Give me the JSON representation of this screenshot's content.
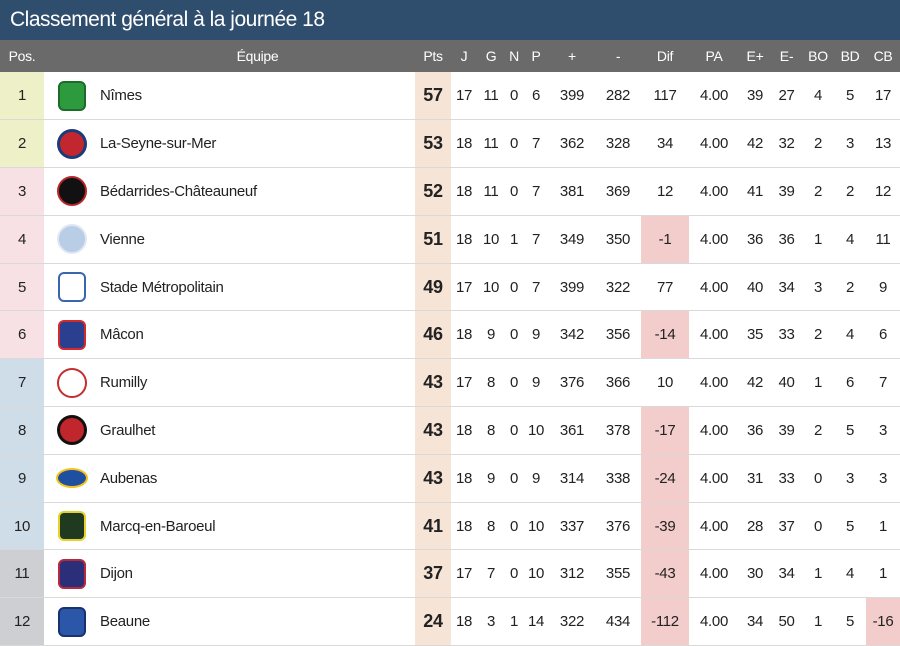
{
  "title": "Classement général à la journée 18",
  "headers": [
    "Pos.",
    "",
    "Équipe",
    "Pts",
    "J",
    "G",
    "N",
    "P",
    "+",
    "-",
    "Dif",
    "PA",
    "E+",
    "E-",
    "BO",
    "BD",
    "CB"
  ],
  "colors": {
    "title_bg": "#2f4e6d",
    "header_bg": "#6a6a6a",
    "pts_bg": "#f6e4d6",
    "negative_bg": "#f3cccc",
    "zone_green": "#eef1c8",
    "zone_pink": "#f8e1e4",
    "zone_blue": "#cfdde8",
    "zone_gray": "#cdcfd3"
  },
  "rows": [
    {
      "pos": "1",
      "team": "Nîmes",
      "logo": "nimes-logo",
      "pts": "57",
      "j": "17",
      "g": "11",
      "n": "0",
      "p": "6",
      "plus": "399",
      "minus": "282",
      "dif": "117",
      "pa": "4.00",
      "eplus": "39",
      "eminus": "27",
      "bo": "4",
      "bd": "5",
      "cb": "17",
      "zone": "zone_green"
    },
    {
      "pos": "2",
      "team": "La-Seyne-sur-Mer",
      "logo": "la-seyne-logo",
      "pts": "53",
      "j": "18",
      "g": "11",
      "n": "0",
      "p": "7",
      "plus": "362",
      "minus": "328",
      "dif": "34",
      "pa": "4.00",
      "eplus": "42",
      "eminus": "32",
      "bo": "2",
      "bd": "3",
      "cb": "13",
      "zone": "zone_green"
    },
    {
      "pos": "3",
      "team": "Bédarrides-Châteauneuf",
      "logo": "bedarrides-logo",
      "pts": "52",
      "j": "18",
      "g": "11",
      "n": "0",
      "p": "7",
      "plus": "381",
      "minus": "369",
      "dif": "12",
      "pa": "4.00",
      "eplus": "41",
      "eminus": "39",
      "bo": "2",
      "bd": "2",
      "cb": "12",
      "zone": "zone_pink"
    },
    {
      "pos": "4",
      "team": "Vienne",
      "logo": "vienne-logo",
      "pts": "51",
      "j": "18",
      "g": "10",
      "n": "1",
      "p": "7",
      "plus": "349",
      "minus": "350",
      "dif": "-1",
      "pa": "4.00",
      "eplus": "36",
      "eminus": "36",
      "bo": "1",
      "bd": "4",
      "cb": "11",
      "zone": "zone_pink"
    },
    {
      "pos": "5",
      "team": "Stade Métropolitain",
      "logo": "stade-logo",
      "pts": "49",
      "j": "17",
      "g": "10",
      "n": "0",
      "p": "7",
      "plus": "399",
      "minus": "322",
      "dif": "77",
      "pa": "4.00",
      "eplus": "40",
      "eminus": "34",
      "bo": "3",
      "bd": "2",
      "cb": "9",
      "zone": "zone_pink"
    },
    {
      "pos": "6",
      "team": "Mâcon",
      "logo": "macon-logo",
      "pts": "46",
      "j": "18",
      "g": "9",
      "n": "0",
      "p": "9",
      "plus": "342",
      "minus": "356",
      "dif": "-14",
      "pa": "4.00",
      "eplus": "35",
      "eminus": "33",
      "bo": "2",
      "bd": "4",
      "cb": "6",
      "zone": "zone_pink"
    },
    {
      "pos": "7",
      "team": "Rumilly",
      "logo": "rumilly-logo",
      "pts": "43",
      "j": "17",
      "g": "8",
      "n": "0",
      "p": "9",
      "plus": "376",
      "minus": "366",
      "dif": "10",
      "pa": "4.00",
      "eplus": "42",
      "eminus": "40",
      "bo": "1",
      "bd": "6",
      "cb": "7",
      "zone": "zone_blue"
    },
    {
      "pos": "8",
      "team": "Graulhet",
      "logo": "graulhet-logo",
      "pts": "43",
      "j": "18",
      "g": "8",
      "n": "0",
      "p": "10",
      "plus": "361",
      "minus": "378",
      "dif": "-17",
      "pa": "4.00",
      "eplus": "36",
      "eminus": "39",
      "bo": "2",
      "bd": "5",
      "cb": "3",
      "zone": "zone_blue"
    },
    {
      "pos": "9",
      "team": "Aubenas",
      "logo": "aubenas-logo",
      "pts": "43",
      "j": "18",
      "g": "9",
      "n": "0",
      "p": "9",
      "plus": "314",
      "minus": "338",
      "dif": "-24",
      "pa": "4.00",
      "eplus": "31",
      "eminus": "33",
      "bo": "0",
      "bd": "3",
      "cb": "3",
      "zone": "zone_blue"
    },
    {
      "pos": "10",
      "team": "Marcq-en-Baroeul",
      "logo": "marcq-logo",
      "pts": "41",
      "j": "18",
      "g": "8",
      "n": "0",
      "p": "10",
      "plus": "337",
      "minus": "376",
      "dif": "-39",
      "pa": "4.00",
      "eplus": "28",
      "eminus": "37",
      "bo": "0",
      "bd": "5",
      "cb": "1",
      "zone": "zone_blue"
    },
    {
      "pos": "11",
      "team": "Dijon",
      "logo": "dijon-logo",
      "pts": "37",
      "j": "17",
      "g": "7",
      "n": "0",
      "p": "10",
      "plus": "312",
      "minus": "355",
      "dif": "-43",
      "pa": "4.00",
      "eplus": "30",
      "eminus": "34",
      "bo": "1",
      "bd": "4",
      "cb": "1",
      "zone": "zone_gray"
    },
    {
      "pos": "12",
      "team": "Beaune",
      "logo": "beaune-logo",
      "pts": "24",
      "j": "18",
      "g": "3",
      "n": "1",
      "p": "14",
      "plus": "322",
      "minus": "434",
      "dif": "-112",
      "pa": "4.00",
      "eplus": "34",
      "eminus": "50",
      "bo": "1",
      "bd": "5",
      "cb": "-16",
      "zone": "zone_gray"
    }
  ]
}
